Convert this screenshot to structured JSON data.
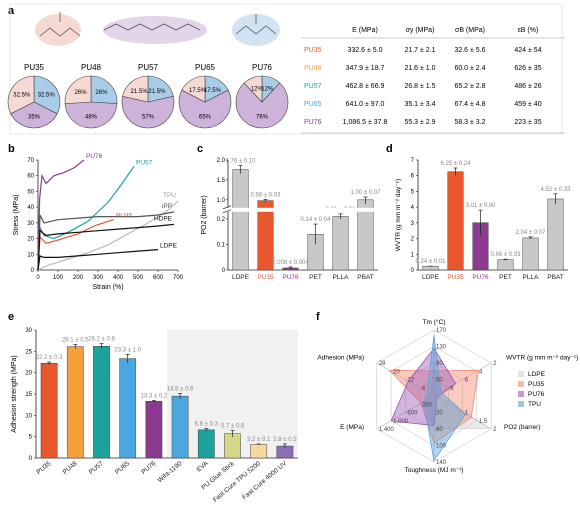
{
  "panel_labels": {
    "a": "a",
    "b": "b",
    "c": "c",
    "d": "d",
    "e": "e",
    "f": "f"
  },
  "colors": {
    "PU35": "#e8572e",
    "PU48": "#f3a03a",
    "PU57": "#1ba39c",
    "PU65": "#4aa7df",
    "PU76": "#8b3a8f",
    "grey": "#c8c8c8",
    "pie_blue": "#a9cde8",
    "pie_pink": "#f6d9d3",
    "pie_purple": "#cdb2d9",
    "teal_light": "#cfe6ea"
  },
  "panel_a": {
    "table_headers": [
      "E (MPa)",
      "σy (MPa)",
      "σB (MPa)",
      "εB (%)"
    ],
    "rows": [
      {
        "name": "PU35",
        "color": "#e8572e",
        "E": "332.6 ± 5.0",
        "sy": "21.7 ± 2.1",
        "sb": "32.6 ± 5.6",
        "eb": "424 ± 54"
      },
      {
        "name": "PU48",
        "color": "#f3a03a",
        "E": "347.9 ± 18.7",
        "sy": "21.6 ± 1.0",
        "sb": "60.0 ± 2.4",
        "eb": "626 ± 35"
      },
      {
        "name": "PU57",
        "color": "#1ba39c",
        "E": "462.8 ± 66.9",
        "sy": "26.8 ± 1.5",
        "sb": "65.2 ± 2.8",
        "eb": "486 ± 26"
      },
      {
        "name": "PU65",
        "color": "#4aa7df",
        "E": "641.0 ± 97.0",
        "sy": "35.1 ± 3.4",
        "sb": "67.4 ± 4.8",
        "eb": "459 ± 40"
      },
      {
        "name": "PU76",
        "color": "#8b3a8f",
        "E": "1,086.5 ± 37.8",
        "sy": "55.3 ± 2.9",
        "sb": "58.3 ± 3.2",
        "eb": "223 ± 35"
      }
    ],
    "pies": [
      {
        "name": "PU35",
        "slices": [
          {
            "label": "32.5%",
            "v": 32.5,
            "c": "#a9cde8"
          },
          {
            "label": "35%",
            "v": 35,
            "c": "#cdb2d9"
          },
          {
            "label": "32.5%",
            "v": 32.5,
            "c": "#f6d9d3"
          }
        ]
      },
      {
        "name": "PU48",
        "slices": [
          {
            "label": "26%",
            "v": 26,
            "c": "#a9cde8"
          },
          {
            "label": "48%",
            "v": 48,
            "c": "#cdb2d9"
          },
          {
            "label": "26%",
            "v": 26,
            "c": "#f6d9d3"
          }
        ]
      },
      {
        "name": "PU57",
        "slices": [
          {
            "label": "21.5%",
            "v": 21.5,
            "c": "#a9cde8"
          },
          {
            "label": "57%",
            "v": 57,
            "c": "#cdb2d9"
          },
          {
            "label": "21.5%",
            "v": 21.5,
            "c": "#f6d9d3"
          }
        ]
      },
      {
        "name": "PU65",
        "slices": [
          {
            "label": "17.5%",
            "v": 17.5,
            "c": "#a9cde8"
          },
          {
            "label": "65%",
            "v": 65,
            "c": "#cdb2d9"
          },
          {
            "label": "17.5%",
            "v": 17.5,
            "c": "#f6d9d3"
          }
        ]
      },
      {
        "name": "PU76",
        "slices": [
          {
            "label": "12%",
            "v": 12,
            "c": "#a9cde8"
          },
          {
            "label": "76%",
            "v": 76,
            "c": "#cdb2d9"
          },
          {
            "label": "12%",
            "v": 12,
            "c": "#f6d9d3"
          }
        ]
      }
    ]
  },
  "chart_data": [
    {
      "panel": "b",
      "type": "line",
      "xlabel": "Strain (%)",
      "ylabel": "Stress (MPa)",
      "xlim": [
        0,
        700
      ],
      "ylim": [
        0,
        70
      ],
      "xticks": [
        0,
        100,
        200,
        300,
        400,
        500,
        600,
        700
      ],
      "yticks": [
        0,
        10,
        20,
        30,
        40,
        50,
        60,
        70
      ],
      "series": [
        {
          "name": "PU76",
          "color": "#8b3a8f",
          "points": [
            [
              0,
              0
            ],
            [
              8,
              45
            ],
            [
              20,
              60
            ],
            [
              40,
              55
            ],
            [
              80,
              60
            ],
            [
              130,
              62
            ],
            [
              180,
              65
            ],
            [
              230,
              70
            ]
          ]
        },
        {
          "name": "PU57",
          "color": "#1ba39c",
          "points": [
            [
              0,
              0
            ],
            [
              10,
              27
            ],
            [
              30,
              22
            ],
            [
              80,
              20
            ],
            [
              150,
              24
            ],
            [
              250,
              31
            ],
            [
              350,
              43
            ],
            [
              420,
              55
            ],
            [
              480,
              66
            ]
          ]
        },
        {
          "name": "TPU",
          "color": "#bbbbbb",
          "points": [
            [
              0,
              0
            ],
            [
              50,
              3
            ],
            [
              150,
              7
            ],
            [
              250,
              11
            ],
            [
              350,
              16
            ],
            [
              450,
              23
            ],
            [
              550,
              30
            ],
            [
              650,
              38
            ],
            [
              700,
              44
            ]
          ]
        },
        {
          "name": "iPP",
          "color": "#555555",
          "points": [
            [
              0,
              0
            ],
            [
              10,
              35
            ],
            [
              30,
              30
            ],
            [
              100,
              32
            ],
            [
              200,
              33
            ],
            [
              300,
              34
            ],
            [
              400,
              34
            ],
            [
              500,
              34
            ],
            [
              600,
              35
            ],
            [
              680,
              37
            ]
          ]
        },
        {
          "name": "PU35",
          "color": "#e8572e",
          "points": [
            [
              0,
              0
            ],
            [
              10,
              21
            ],
            [
              40,
              17
            ],
            [
              100,
              19
            ],
            [
              200,
              23
            ],
            [
              280,
              28
            ],
            [
              350,
              31
            ],
            [
              380,
              32
            ]
          ]
        },
        {
          "name": "HDPE",
          "color": "#111111",
          "points": [
            [
              0,
              0
            ],
            [
              10,
              25
            ],
            [
              40,
              22
            ],
            [
              100,
              23
            ],
            [
              200,
              24
            ],
            [
              300,
              25
            ],
            [
              400,
              26
            ],
            [
              500,
              27
            ],
            [
              600,
              28
            ],
            [
              680,
              29
            ]
          ]
        },
        {
          "name": "LDPE",
          "color": "#111111",
          "points": [
            [
              0,
              0
            ],
            [
              10,
              9
            ],
            [
              30,
              8
            ],
            [
              100,
              8
            ],
            [
              200,
              9
            ],
            [
              300,
              10
            ],
            [
              400,
              11
            ],
            [
              500,
              12
            ],
            [
              600,
              13
            ]
          ]
        }
      ]
    },
    {
      "panel": "c",
      "type": "bar",
      "ylabel": "PO2 (barrer)",
      "categories": [
        "LDPE",
        "PU35",
        "PU76",
        "PET",
        "PLLA",
        "PBAT"
      ],
      "values": [
        1.76,
        0.98,
        0.008,
        0.14,
        0.21,
        1.0
      ],
      "errors": [
        0.1,
        0.03,
        0.004,
        0.04,
        0.01,
        0.07
      ],
      "value_labels": [
        "1.76 ± 0.10",
        "0.98 ± 0.03",
        "0.008 ± 0.004",
        "0.14 ± 0.04",
        "0.21 ± 0.01",
        "1.00 ± 0.07"
      ],
      "yticks_low": [
        "0",
        "0.1",
        "0.2"
      ],
      "yticks_high": [
        "1.0",
        "1.5",
        "2.0"
      ],
      "colors": [
        "#c8c8c8",
        "#e8572e",
        "#8b3a8f",
        "#c8c8c8",
        "#c8c8c8",
        "#c8c8c8"
      ]
    },
    {
      "panel": "d",
      "type": "bar",
      "ylabel": "WVTR (g mm m⁻² day⁻¹)",
      "categories": [
        "LDPE",
        "PU35",
        "PU76",
        "PET",
        "PLLA",
        "PBAT"
      ],
      "values": [
        0.24,
        6.25,
        3.01,
        0.66,
        2.04,
        4.52
      ],
      "errors": [
        0.01,
        0.24,
        0.8,
        0.03,
        0.07,
        0.33
      ],
      "value_labels": [
        "0.24 ± 0.01",
        "6.25 ± 0.24",
        "3.01 ± 0.80",
        "0.66 ± 0.03",
        "2.04 ± 0.07",
        "4.52 ± 0.33"
      ],
      "ylim": [
        0,
        7
      ],
      "yticks": [
        0,
        1,
        2,
        3,
        4,
        5,
        6,
        7
      ],
      "colors": [
        "#c8c8c8",
        "#e8572e",
        "#8b3a8f",
        "#c8c8c8",
        "#c8c8c8",
        "#c8c8c8"
      ]
    },
    {
      "panel": "e",
      "type": "bar",
      "ylabel": "Adhesion strength (MPa)",
      "categories": [
        "PU35",
        "PU48",
        "PU57",
        "PU65",
        "PU76",
        "Wiht-1190",
        "EVA",
        "PU Glue Stick",
        "Fast Cure TPU 5200",
        "Fast Cure 4000 UV"
      ],
      "values": [
        22.2,
        26.1,
        26.2,
        23.3,
        13.3,
        14.5,
        6.6,
        5.7,
        3.2,
        2.8
      ],
      "errors": [
        0.3,
        0.5,
        0.6,
        1.0,
        0.2,
        0.6,
        0.3,
        0.8,
        0.1,
        0.5
      ],
      "value_labels": [
        "22.2 ± 0.3",
        "26.1 ± 0.5",
        "26.2 ± 0.6",
        "23.3 ± 1.0",
        "13.3 ± 0.2",
        "14.5 ± 0.6",
        "6.6 ± 0.3",
        "5.7 ± 0.8",
        "3.2 ± 0.1",
        "2.8 ± 0.5"
      ],
      "ylim": [
        0,
        30
      ],
      "yticks": [
        0,
        5,
        10,
        15,
        20,
        25,
        30
      ],
      "colors": [
        "#e8572e",
        "#f3a03a",
        "#1ba39c",
        "#4aa7df",
        "#8b3a8f",
        "#4aa7df",
        "#1ba39c",
        "#d7d78a",
        "#f3d9a0",
        "#8b6db8"
      ]
    },
    {
      "panel": "f",
      "type": "radar",
      "axes": [
        {
          "label": "Tm (°C)",
          "ticks": [
            "170",
            "130",
            "90",
            "50"
          ]
        },
        {
          "label": "WVTR (g mm m⁻² day⁻¹)",
          "ticks": [
            "2",
            "4",
            "6",
            "8"
          ]
        },
        {
          "label": "PO2 (barrer)",
          "ticks": [
            "2",
            "1.5",
            "1"
          ]
        },
        {
          "label": "Toughness (MJ m⁻³)",
          "ticks": [
            "140",
            "100",
            "60",
            "20"
          ]
        },
        {
          "label": "E (MPa)",
          "ticks": [
            "1,400",
            "1,000",
            "600",
            "200"
          ]
        },
        {
          "label": "Adhesion (MPa)",
          "ticks": [
            "28",
            "20",
            "12",
            "4"
          ]
        }
      ],
      "series": [
        {
          "name": "LDPE",
          "color": "#cfcfcf",
          "r": [
            0.55,
            0.05,
            0.98,
            0.5,
            0.15,
            0.05
          ]
        },
        {
          "name": "PU35",
          "color": "#f08a74",
          "r": [
            0.38,
            0.78,
            0.65,
            0.72,
            0.22,
            0.78
          ]
        },
        {
          "name": "PU76",
          "color": "#9b59b6",
          "r": [
            0.72,
            0.38,
            0.05,
            0.45,
            0.75,
            0.45
          ]
        },
        {
          "name": "TPU",
          "color": "#5da5da",
          "r": [
            0.92,
            0.12,
            0.55,
            0.98,
            0.18,
            0.12
          ]
        }
      ]
    }
  ]
}
